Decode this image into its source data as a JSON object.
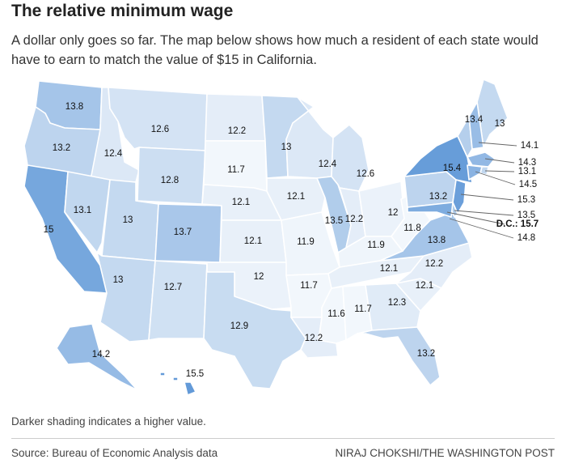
{
  "title": "The relative minimum wage",
  "subtitle": "A dollar only goes so far. The map below shows how much a resident of each state would have to earn to match the value of $15 in California.",
  "note": "Darker shading indicates a higher value.",
  "source": "Source: Bureau of Economic Analysis data",
  "credit": "NIRAJ CHOKSHI/THE WASHINGTON POST",
  "color_scale": {
    "low": "#ffffff",
    "high": "#5b95d6",
    "min": 11.5,
    "max": 15.7
  },
  "chart_data": {
    "type": "choropleth",
    "unit": "dollars",
    "states": [
      {
        "id": "WA",
        "value": 13.8,
        "label": "13.8"
      },
      {
        "id": "OR",
        "value": 13.2,
        "label": "13.2"
      },
      {
        "id": "CA",
        "value": 15,
        "label": "15"
      },
      {
        "id": "ID",
        "value": 12.4,
        "label": "12.4"
      },
      {
        "id": "NV",
        "value": 13.1,
        "label": "13.1"
      },
      {
        "id": "MT",
        "value": 12.6,
        "label": "12.6"
      },
      {
        "id": "WY",
        "value": 12.8,
        "label": "12.8"
      },
      {
        "id": "UT",
        "value": 13,
        "label": "13"
      },
      {
        "id": "AZ",
        "value": 13,
        "label": "13"
      },
      {
        "id": "CO",
        "value": 13.7,
        "label": "13.7"
      },
      {
        "id": "NM",
        "value": 12.7,
        "label": "12.7"
      },
      {
        "id": "ND",
        "value": 12.2,
        "label": "12.2"
      },
      {
        "id": "SD",
        "value": 11.7,
        "label": "11.7"
      },
      {
        "id": "NE",
        "value": 12.1,
        "label": "12.1"
      },
      {
        "id": "KS",
        "value": 12.1,
        "label": "12.1"
      },
      {
        "id": "OK",
        "value": 12,
        "label": "12"
      },
      {
        "id": "TX",
        "value": 12.9,
        "label": "12.9"
      },
      {
        "id": "MN",
        "value": 13,
        "label": "13"
      },
      {
        "id": "IA",
        "value": 12.1,
        "label": "12.1"
      },
      {
        "id": "MO",
        "value": 11.9,
        "label": "11.9"
      },
      {
        "id": "AR",
        "value": 11.7,
        "label": "11.7"
      },
      {
        "id": "LA",
        "value": 12.2,
        "label": "12.2"
      },
      {
        "id": "WI",
        "value": 12.4,
        "label": "12.4"
      },
      {
        "id": "IL",
        "value": 13.5,
        "label": "13.5"
      },
      {
        "id": "MI",
        "value": 12.6,
        "label": "12.6"
      },
      {
        "id": "IN",
        "value": 12.2,
        "label": "12.2"
      },
      {
        "id": "OH",
        "value": 12,
        "label": "12"
      },
      {
        "id": "KY",
        "value": 11.9,
        "label": "11.9"
      },
      {
        "id": "TN",
        "value": 12.1,
        "label": "12.1"
      },
      {
        "id": "MS",
        "value": 11.6,
        "label": "11.6"
      },
      {
        "id": "AL",
        "value": 11.7,
        "label": "11.7"
      },
      {
        "id": "GA",
        "value": 12.3,
        "label": "12.3"
      },
      {
        "id": "FL",
        "value": 13.2,
        "label": "13.2"
      },
      {
        "id": "SC",
        "value": 12.1,
        "label": "12.1"
      },
      {
        "id": "NC",
        "value": 12.2,
        "label": "12.2"
      },
      {
        "id": "VA",
        "value": 13.8,
        "label": "13.8"
      },
      {
        "id": "WV",
        "value": 11.8,
        "label": "11.8"
      },
      {
        "id": "PA",
        "value": 13.2,
        "label": "13.2"
      },
      {
        "id": "NY",
        "value": 15.4,
        "label": "15.4"
      },
      {
        "id": "VT",
        "value": 13.4,
        "label": "13.4"
      },
      {
        "id": "ME",
        "value": 13,
        "label": "13"
      },
      {
        "id": "NH",
        "value": 14.1,
        "label": "14.1"
      },
      {
        "id": "MA",
        "value": 14.3,
        "label": "14.3"
      },
      {
        "id": "RI",
        "value": 13.1,
        "label": "13.1"
      },
      {
        "id": "CT",
        "value": 14.5,
        "label": "14.5"
      },
      {
        "id": "NJ",
        "value": 15.3,
        "label": "15.3"
      },
      {
        "id": "DE",
        "value": 13.5,
        "label": "13.5"
      },
      {
        "id": "DC",
        "value": 15.7,
        "label": "D.C.: 15.7"
      },
      {
        "id": "MD",
        "value": 14.8,
        "label": "14.8"
      },
      {
        "id": "AK",
        "value": 14.2,
        "label": "14.2"
      },
      {
        "id": "HI",
        "value": 15.5,
        "label": "15.5"
      }
    ]
  }
}
